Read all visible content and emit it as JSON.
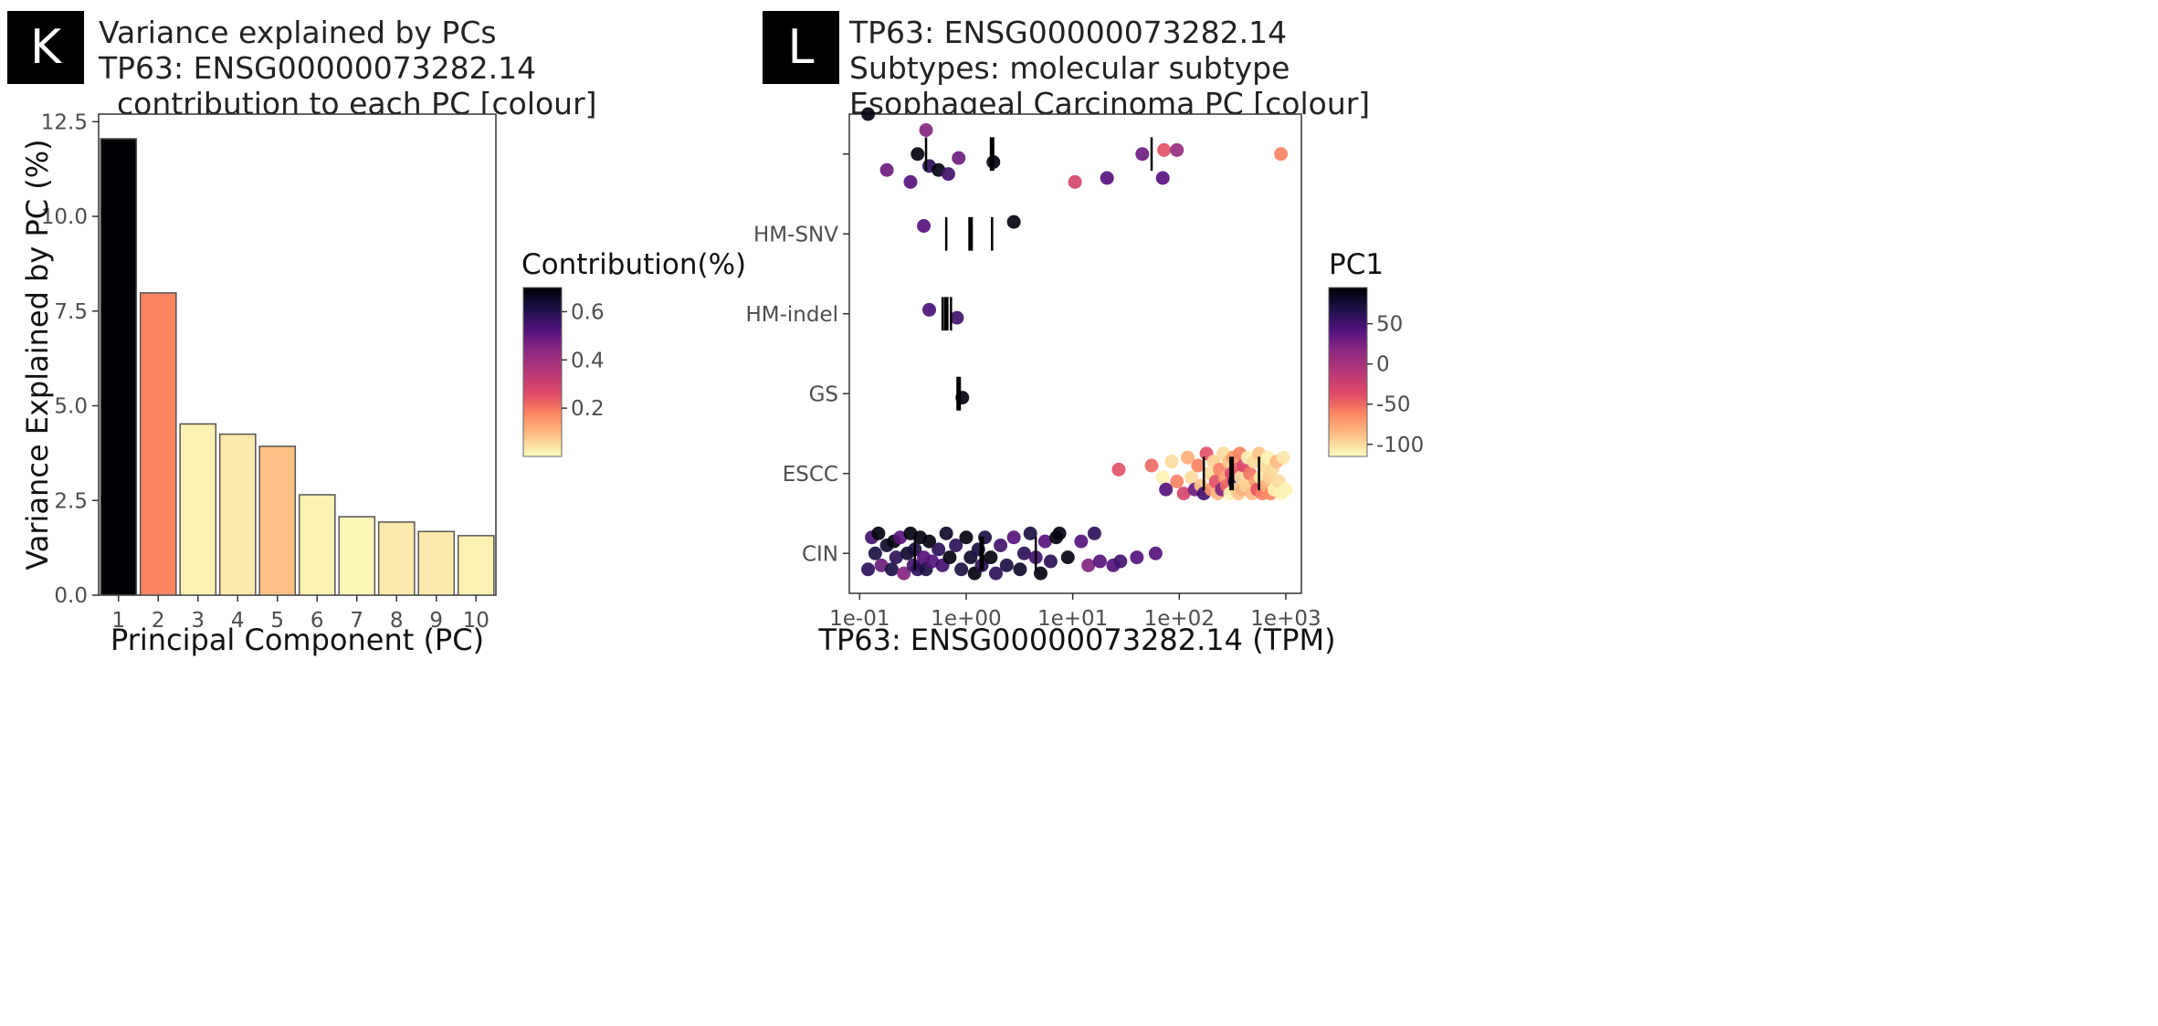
{
  "colors": {
    "panel_label_bg": "#000000",
    "bar_stroke": "#555555",
    "gradient": [
      "#FCFDBF",
      "#FEC287",
      "#FB8861",
      "#DE4968",
      "#B73779",
      "#8C2981",
      "#51127C",
      "#1D1147",
      "#000004"
    ]
  },
  "panels": [
    {
      "label": "K",
      "title_lines": [
        "Variance explained by PCs",
        "TP63: ENSG00000073282.14",
        "contribution to each PC [colour]"
      ]
    },
    {
      "label": "L",
      "title_lines": [
        "TP63: ENSG00000073282.14",
        "Subtypes: molecular subtype",
        "Esophageal Carcinoma PC [colour]"
      ]
    }
  ],
  "chart_data": [
    {
      "type": "bar",
      "xlabel": "Principal Component (PC)",
      "ylabel": "Variance Explained by PC (%)",
      "categories": [
        "1",
        "2",
        "3",
        "4",
        "5",
        "6",
        "7",
        "8",
        "9",
        "10"
      ],
      "values": [
        12.05,
        7.98,
        4.52,
        4.25,
        3.93,
        2.65,
        2.07,
        1.93,
        1.68,
        1.57
      ],
      "contribution": [
        0.7,
        0.18,
        0.02,
        0.03,
        0.09,
        0.02,
        0.01,
        0.03,
        0.03,
        0.02
      ],
      "ylim": [
        0,
        12.7
      ],
      "yticks": [
        "0.0",
        "2.5",
        "5.0",
        "7.5",
        "10.0",
        "12.5"
      ],
      "legend": {
        "title": "Contribution(%)",
        "ticks": [
          "0.2",
          "0.4",
          "0.6"
        ],
        "range": [
          0.0,
          0.7
        ],
        "position": "right"
      }
    },
    {
      "type": "scatter",
      "xlabel": "TP63: ENSG00000073282.14 (TPM)",
      "xscale": "log10",
      "xlim": [
        0.08,
        1400
      ],
      "xticks": [
        "1e-01",
        "1e+00",
        "1e+01",
        "1e+02",
        "1e+03"
      ],
      "categories": [
        "",
        "HM-SNV",
        "HM-indel",
        "GS",
        "ESCC",
        "CIN"
      ],
      "boxes": [
        {
          "category": "",
          "q1": 0.42,
          "median": 1.75,
          "q3": 55
        },
        {
          "category": "HM-SNV",
          "q1": 0.65,
          "median": 1.1,
          "q3": 1.75
        },
        {
          "category": "HM-indel",
          "q1": 0.6,
          "median": 0.65,
          "q3": 0.72
        },
        {
          "category": "GS",
          "q1": 0.85,
          "median": 0.85,
          "q3": 0.85
        },
        {
          "category": "ESCC",
          "q1": 170,
          "median": 310,
          "q3": 560
        },
        {
          "category": "CIN",
          "q1": 0.33,
          "median": 1.4,
          "q3": 4.5
        }
      ],
      "series": [
        {
          "category": "",
          "points": [
            [
              0.12,
              -0.5,
              90
            ],
            [
              0.18,
              0.2,
              30
            ],
            [
              0.3,
              0.35,
              40
            ],
            [
              0.35,
              0,
              90
            ],
            [
              0.42,
              -0.3,
              20
            ],
            [
              0.45,
              0.15,
              60
            ],
            [
              0.55,
              0.2,
              90
            ],
            [
              0.68,
              0.25,
              50
            ],
            [
              0.85,
              0.05,
              30
            ],
            [
              1.8,
              0.1,
              90
            ],
            [
              10.5,
              0.35,
              -30
            ],
            [
              21,
              0.3,
              40
            ],
            [
              45,
              0,
              30
            ],
            [
              70,
              0.3,
              40
            ],
            [
              72,
              -0.05,
              -40
            ],
            [
              95,
              -0.05,
              10
            ],
            [
              900,
              0,
              -60
            ]
          ]
        },
        {
          "category": "HM-SNV",
          "points": [
            [
              0.4,
              -0.1,
              40
            ],
            [
              2.8,
              -0.15,
              90
            ]
          ]
        },
        {
          "category": "HM-indel",
          "points": [
            [
              0.45,
              -0.05,
              45
            ],
            [
              0.82,
              0.05,
              50
            ]
          ]
        },
        {
          "category": "GS",
          "points": [
            [
              0.92,
              0.05,
              90
            ]
          ]
        },
        {
          "category": "ESCC",
          "points": [
            [
              27,
              -0.05,
              -40
            ],
            [
              55,
              -0.1,
              -50
            ],
            [
              70,
              0.05,
              -110
            ],
            [
              75,
              0.2,
              40
            ],
            [
              85,
              -0.15,
              -100
            ],
            [
              95,
              0.1,
              -60
            ],
            [
              110,
              0.25,
              -30
            ],
            [
              120,
              -0.2,
              -80
            ],
            [
              130,
              0.05,
              -100
            ],
            [
              140,
              0.2,
              30
            ],
            [
              150,
              -0.1,
              -60
            ],
            [
              160,
              0.15,
              -90
            ],
            [
              170,
              0.25,
              50
            ],
            [
              180,
              -0.25,
              -40
            ],
            [
              190,
              0,
              -100
            ],
            [
              200,
              0.2,
              -70
            ],
            [
              210,
              -0.15,
              -95
            ],
            [
              220,
              0.1,
              -40
            ],
            [
              230,
              0.25,
              -85
            ],
            [
              240,
              -0.05,
              -60
            ],
            [
              250,
              0.2,
              20
            ],
            [
              260,
              -0.25,
              -100
            ],
            [
              270,
              0.05,
              -75
            ],
            [
              280,
              0.15,
              -50
            ],
            [
              290,
              -0.15,
              -90
            ],
            [
              300,
              0.25,
              -110
            ],
            [
              310,
              0,
              -30
            ],
            [
              320,
              -0.2,
              -70
            ],
            [
              330,
              0.1,
              60
            ],
            [
              340,
              0.2,
              -100
            ],
            [
              350,
              -0.05,
              -45
            ],
            [
              360,
              0.25,
              -90
            ],
            [
              370,
              -0.25,
              -60
            ],
            [
              380,
              0.05,
              -100
            ],
            [
              390,
              0.2,
              -80
            ],
            [
              400,
              -0.1,
              -35
            ],
            [
              420,
              0.15,
              -95
            ],
            [
              440,
              -0.2,
              -110
            ],
            [
              460,
              0,
              -55
            ],
            [
              480,
              0.25,
              -85
            ],
            [
              500,
              -0.15,
              -100
            ],
            [
              520,
              0.1,
              -70
            ],
            [
              540,
              0.2,
              -40
            ],
            [
              560,
              -0.25,
              -90
            ],
            [
              580,
              0.05,
              -105
            ],
            [
              600,
              0.25,
              -60
            ],
            [
              620,
              -0.1,
              -100
            ],
            [
              650,
              0.15,
              -80
            ],
            [
              680,
              -0.2,
              -110
            ],
            [
              700,
              0.05,
              -95
            ],
            [
              720,
              0.25,
              -65
            ],
            [
              750,
              -0.05,
              -100
            ],
            [
              780,
              0.2,
              -110
            ],
            [
              820,
              -0.15,
              -85
            ],
            [
              860,
              0.1,
              -100
            ],
            [
              900,
              0.25,
              -110
            ],
            [
              950,
              -0.2,
              -105
            ],
            [
              1000,
              0.2,
              -110
            ]
          ]
        },
        {
          "category": "CIN",
          "points": [
            [
              0.12,
              0.2,
              60
            ],
            [
              0.13,
              -0.2,
              50
            ],
            [
              0.14,
              0,
              70
            ],
            [
              0.15,
              -0.25,
              90
            ],
            [
              0.16,
              0.15,
              30
            ],
            [
              0.18,
              -0.1,
              80
            ],
            [
              0.2,
              0.2,
              70
            ],
            [
              0.21,
              -0.15,
              90
            ],
            [
              0.22,
              0.05,
              60
            ],
            [
              0.24,
              -0.2,
              40
            ],
            [
              0.26,
              0.25,
              20
            ],
            [
              0.28,
              0,
              80
            ],
            [
              0.3,
              -0.25,
              90
            ],
            [
              0.32,
              0.15,
              50
            ],
            [
              0.33,
              -0.05,
              70
            ],
            [
              0.35,
              0.2,
              60
            ],
            [
              0.37,
              -0.2,
              90
            ],
            [
              0.4,
              0.05,
              40
            ],
            [
              0.42,
              0.2,
              70
            ],
            [
              0.45,
              -0.15,
              90
            ],
            [
              0.48,
              0.1,
              40
            ],
            [
              0.55,
              -0.05,
              60
            ],
            [
              0.6,
              0.15,
              50
            ],
            [
              0.65,
              -0.25,
              80
            ],
            [
              0.7,
              0.05,
              90
            ],
            [
              0.8,
              -0.1,
              60
            ],
            [
              0.9,
              0.2,
              70
            ],
            [
              1.0,
              -0.2,
              90
            ],
            [
              1.1,
              0.05,
              80
            ],
            [
              1.2,
              0.25,
              90
            ],
            [
              1.3,
              -0.05,
              70
            ],
            [
              1.4,
              0.15,
              60
            ],
            [
              1.5,
              -0.2,
              70
            ],
            [
              1.7,
              0.05,
              90
            ],
            [
              1.9,
              0.25,
              60
            ],
            [
              2.1,
              -0.1,
              50
            ],
            [
              2.4,
              0.15,
              70
            ],
            [
              2.8,
              -0.2,
              40
            ],
            [
              3.2,
              0.2,
              80
            ],
            [
              3.5,
              0,
              60
            ],
            [
              4.0,
              -0.25,
              70
            ],
            [
              4.5,
              0.05,
              50
            ],
            [
              5.0,
              0.25,
              90
            ],
            [
              5.5,
              -0.15,
              40
            ],
            [
              6.2,
              0.1,
              60
            ],
            [
              7.0,
              -0.2,
              90
            ],
            [
              7.5,
              -0.25,
              90
            ],
            [
              9.0,
              0.05,
              90
            ],
            [
              12,
              -0.15,
              40
            ],
            [
              14,
              0.15,
              20
            ],
            [
              16,
              -0.25,
              60
            ],
            [
              18,
              0.1,
              40
            ],
            [
              24,
              0.15,
              40
            ],
            [
              28,
              0.1,
              50
            ],
            [
              40,
              0.05,
              40
            ],
            [
              60,
              0,
              40
            ]
          ]
        }
      ],
      "legend": {
        "title": "PC1",
        "ticks": [
          "50",
          "0",
          "-50",
          "-100"
        ],
        "range": [
          -115,
          95
        ],
        "position": "right"
      }
    }
  ]
}
